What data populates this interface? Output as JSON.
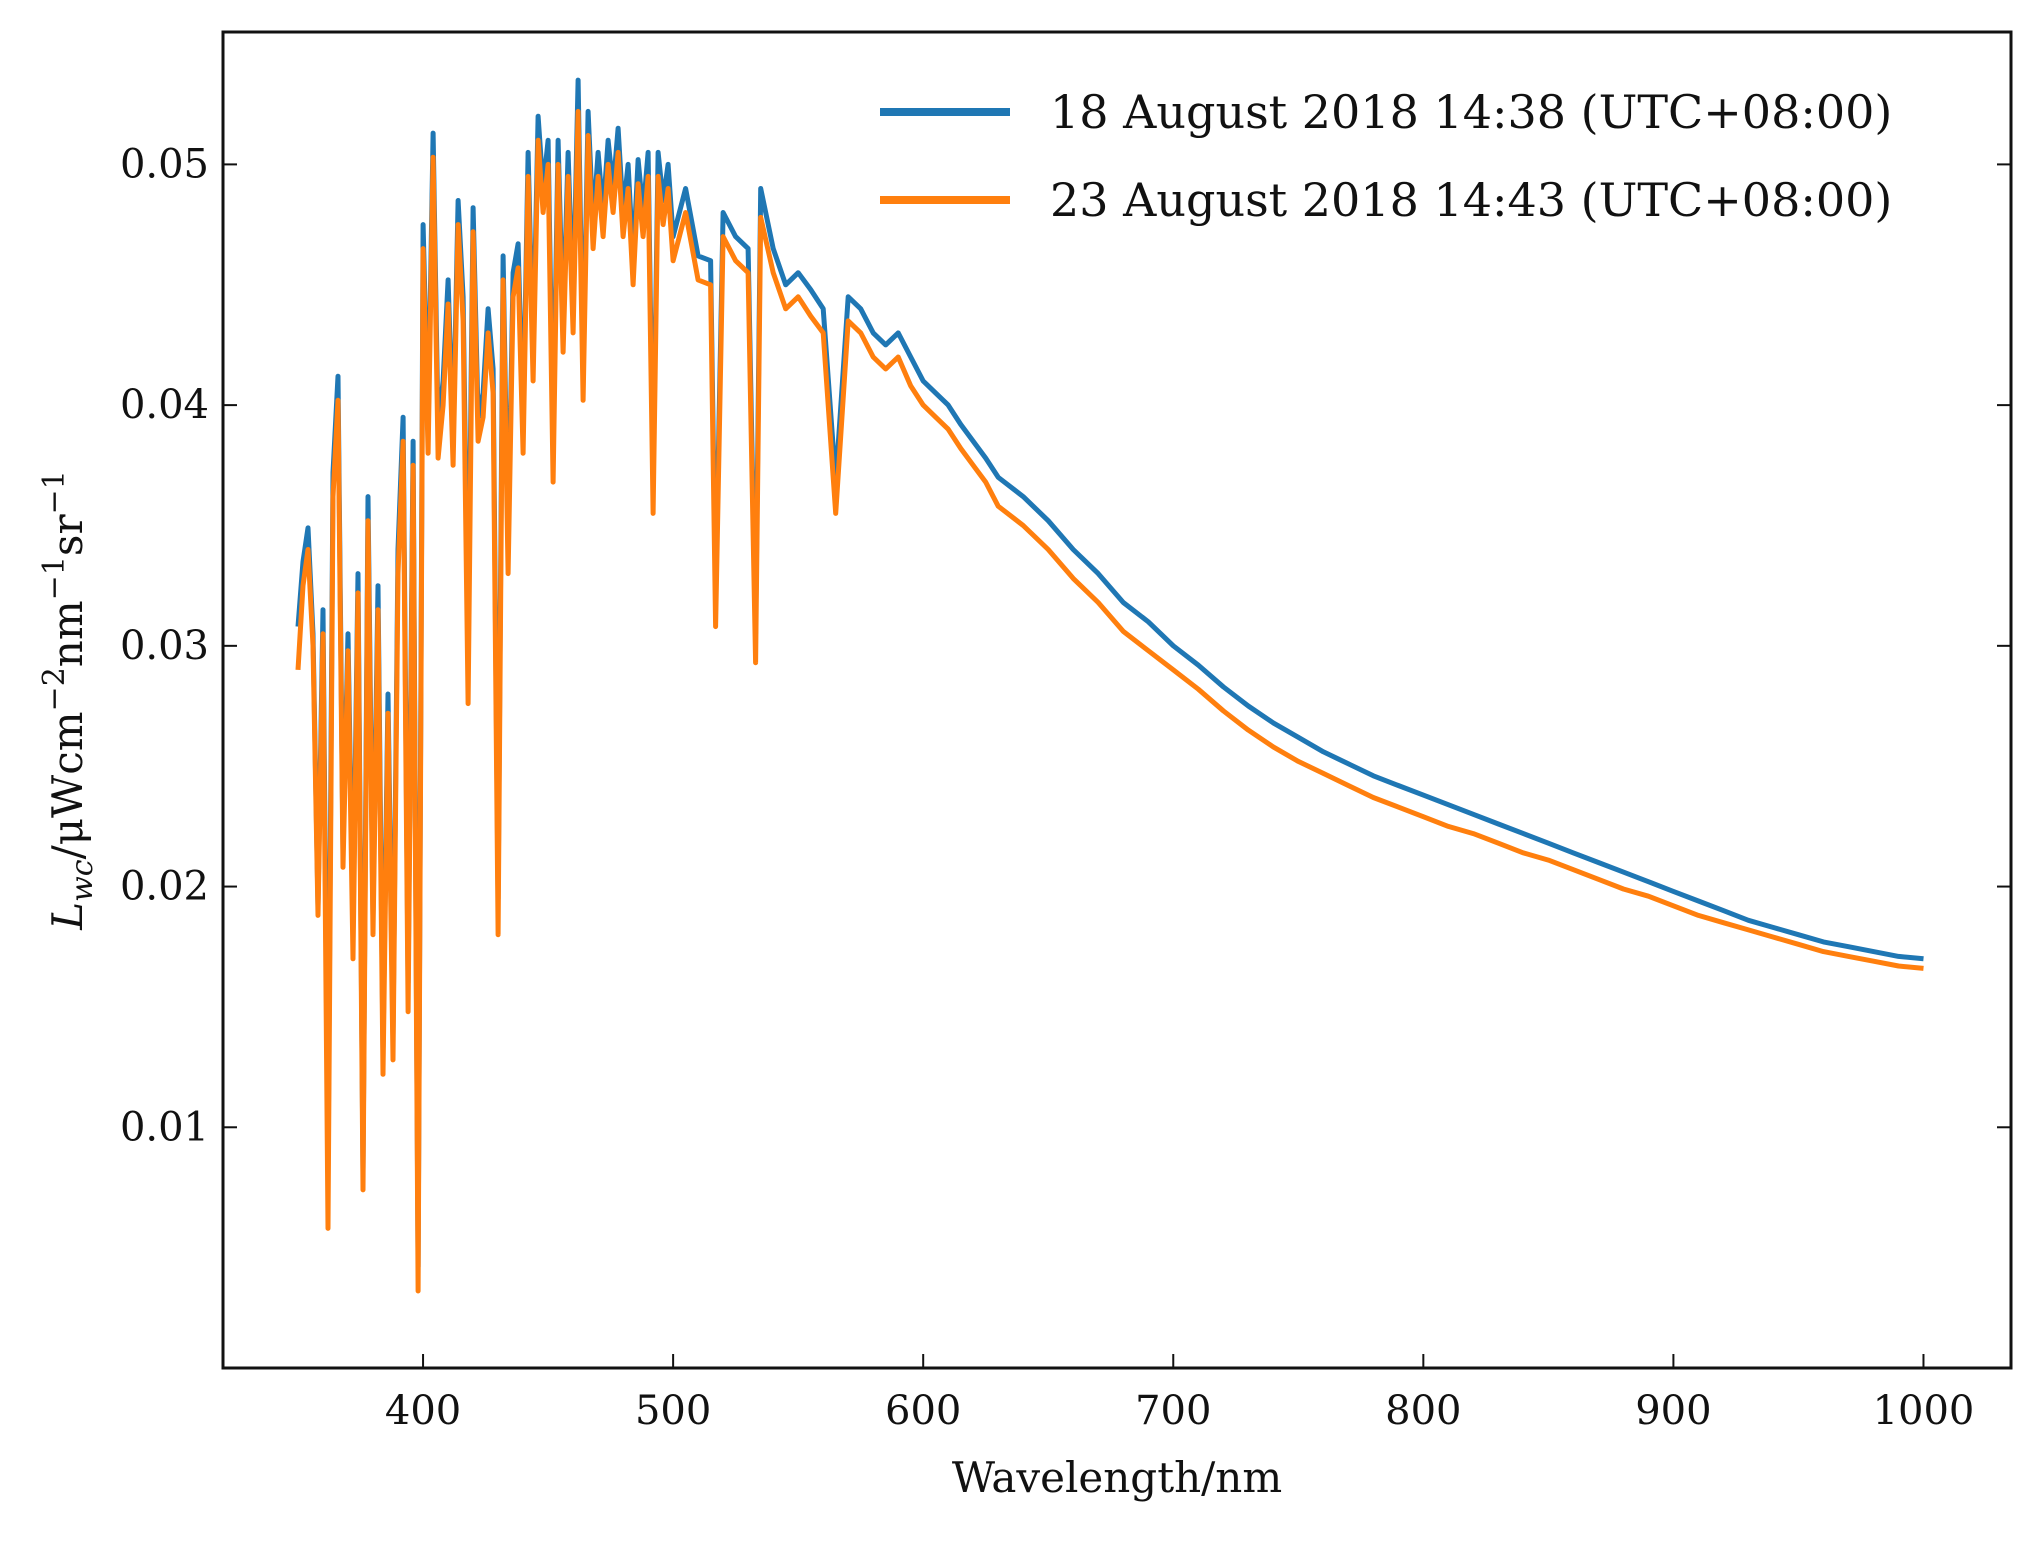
{
  "chart_data": {
    "type": "line",
    "title": "",
    "xlabel": "Wavelength/nm",
    "ylabel": {
      "prefix": "L",
      "subscript": "wc",
      "text": "/μWcm",
      "exp1": "−2",
      "mid": "nm",
      "exp2": "−1",
      "end": "sr",
      "exp3": "−1"
    },
    "xlim": [
      320,
      1035
    ],
    "ylim": [
      0,
      0.0555
    ],
    "xticks": [
      400,
      500,
      600,
      700,
      800,
      900,
      1000
    ],
    "yticks": [
      0.01,
      0.02,
      0.03,
      0.04,
      0.05
    ],
    "ytick_labels": [
      "0.01",
      "0.02",
      "0.03",
      "0.04",
      "0.05"
    ],
    "xtick_labels": [
      "400",
      "500",
      "600",
      "700",
      "800",
      "900",
      "1000"
    ],
    "legend_position": "top-right",
    "series": [
      {
        "name": "18 August 2018 14:38 (UTC+08:00)",
        "color": "#1f77b4",
        "x": [
          350,
          352,
          354,
          356,
          358,
          360,
          362,
          364,
          366,
          368,
          370,
          372,
          374,
          376,
          378,
          380,
          382,
          384,
          386,
          388,
          390,
          392,
          394,
          396,
          398,
          400,
          402,
          404,
          406,
          408,
          410,
          412,
          414,
          416,
          418,
          420,
          422,
          424,
          426,
          428,
          430,
          432,
          434,
          436,
          438,
          440,
          442,
          444,
          446,
          448,
          450,
          452,
          454,
          456,
          458,
          460,
          462,
          464,
          466,
          468,
          470,
          472,
          474,
          476,
          478,
          480,
          482,
          484,
          486,
          488,
          490,
          492,
          494,
          496,
          498,
          500,
          505,
          510,
          515,
          517,
          520,
          525,
          530,
          533,
          535,
          540,
          545,
          550,
          555,
          560,
          565,
          570,
          575,
          580,
          585,
          590,
          595,
          600,
          605,
          610,
          615,
          620,
          625,
          630,
          640,
          650,
          660,
          670,
          680,
          690,
          700,
          710,
          720,
          730,
          740,
          750,
          760,
          770,
          780,
          790,
          800,
          810,
          820,
          830,
          840,
          850,
          860,
          870,
          880,
          890,
          900,
          910,
          920,
          930,
          940,
          950,
          960,
          970,
          980,
          990,
          1000
        ],
        "y": [
          0.0308,
          0.0335,
          0.0349,
          0.0305,
          0.0192,
          0.0315,
          0.0081,
          0.0372,
          0.0412,
          0.0215,
          0.0305,
          0.0182,
          0.033,
          0.0082,
          0.0362,
          0.0188,
          0.0325,
          0.0132,
          0.028,
          0.0138,
          0.034,
          0.0395,
          0.016,
          0.0385,
          0.0042,
          0.0475,
          0.039,
          0.0513,
          0.039,
          0.041,
          0.0452,
          0.0385,
          0.0485,
          0.0445,
          0.03,
          0.0482,
          0.0395,
          0.0405,
          0.044,
          0.0415,
          0.0195,
          0.0462,
          0.034,
          0.0455,
          0.0467,
          0.039,
          0.0505,
          0.042,
          0.052,
          0.049,
          0.051,
          0.0385,
          0.051,
          0.0432,
          0.0505,
          0.044,
          0.0535,
          0.0412,
          0.0522,
          0.0475,
          0.0505,
          0.048,
          0.051,
          0.049,
          0.0515,
          0.048,
          0.05,
          0.046,
          0.0502,
          0.048,
          0.0505,
          0.0368,
          0.0505,
          0.0485,
          0.05,
          0.047,
          0.049,
          0.0462,
          0.046,
          0.032,
          0.048,
          0.047,
          0.0465,
          0.0305,
          0.049,
          0.0465,
          0.045,
          0.0455,
          0.0448,
          0.044,
          0.0368,
          0.0445,
          0.044,
          0.043,
          0.0425,
          0.043,
          0.042,
          0.041,
          0.0405,
          0.04,
          0.0392,
          0.0385,
          0.0378,
          0.037,
          0.0362,
          0.0352,
          0.034,
          0.033,
          0.0318,
          0.031,
          0.03,
          0.0292,
          0.0283,
          0.0275,
          0.0268,
          0.0262,
          0.0256,
          0.0251,
          0.0246,
          0.0242,
          0.0238,
          0.0234,
          0.023,
          0.0226,
          0.0222,
          0.0218,
          0.0214,
          0.021,
          0.0206,
          0.0202,
          0.0198,
          0.0194,
          0.019,
          0.0186,
          0.0183,
          0.018,
          0.0177,
          0.0175,
          0.0173,
          0.0171,
          0.017
        ]
      },
      {
        "name": "23 August 2018 14:43 (UTC+08:00)",
        "color": "#ff7f0e",
        "x": [
          350,
          352,
          354,
          356,
          358,
          360,
          362,
          364,
          366,
          368,
          370,
          372,
          374,
          376,
          378,
          380,
          382,
          384,
          386,
          388,
          390,
          392,
          394,
          396,
          398,
          400,
          402,
          404,
          406,
          408,
          410,
          412,
          414,
          416,
          418,
          420,
          422,
          424,
          426,
          428,
          430,
          432,
          434,
          436,
          438,
          440,
          442,
          444,
          446,
          448,
          450,
          452,
          454,
          456,
          458,
          460,
          462,
          464,
          466,
          468,
          470,
          472,
          474,
          476,
          478,
          480,
          482,
          484,
          486,
          488,
          490,
          492,
          494,
          496,
          498,
          500,
          505,
          510,
          515,
          517,
          520,
          525,
          530,
          533,
          535,
          540,
          545,
          550,
          555,
          560,
          565,
          570,
          575,
          580,
          585,
          590,
          595,
          600,
          605,
          610,
          615,
          620,
          625,
          630,
          640,
          650,
          660,
          670,
          680,
          690,
          700,
          710,
          720,
          730,
          740,
          750,
          760,
          770,
          780,
          790,
          800,
          810,
          820,
          830,
          840,
          850,
          860,
          870,
          880,
          890,
          900,
          910,
          920,
          930,
          940,
          950,
          960,
          970,
          980,
          990,
          1000
        ],
        "y": [
          0.029,
          0.0325,
          0.034,
          0.03,
          0.0188,
          0.0305,
          0.0058,
          0.0362,
          0.0402,
          0.0208,
          0.0298,
          0.017,
          0.0322,
          0.0074,
          0.0352,
          0.018,
          0.0315,
          0.0122,
          0.0272,
          0.0128,
          0.033,
          0.0385,
          0.0148,
          0.0375,
          0.0032,
          0.0465,
          0.038,
          0.0503,
          0.0378,
          0.04,
          0.0442,
          0.0375,
          0.0475,
          0.0435,
          0.0276,
          0.0472,
          0.0385,
          0.0395,
          0.043,
          0.0405,
          0.018,
          0.0452,
          0.033,
          0.0445,
          0.0457,
          0.038,
          0.0495,
          0.041,
          0.051,
          0.048,
          0.05,
          0.0368,
          0.05,
          0.0422,
          0.0495,
          0.043,
          0.0522,
          0.0402,
          0.0512,
          0.0465,
          0.0495,
          0.047,
          0.05,
          0.048,
          0.0505,
          0.047,
          0.049,
          0.045,
          0.0492,
          0.047,
          0.0495,
          0.0355,
          0.0495,
          0.0475,
          0.049,
          0.046,
          0.048,
          0.0452,
          0.045,
          0.0308,
          0.047,
          0.046,
          0.0455,
          0.0293,
          0.0478,
          0.0455,
          0.044,
          0.0445,
          0.0437,
          0.043,
          0.0355,
          0.0435,
          0.043,
          0.042,
          0.0415,
          0.042,
          0.0408,
          0.04,
          0.0395,
          0.039,
          0.0382,
          0.0375,
          0.0368,
          0.0358,
          0.035,
          0.034,
          0.0328,
          0.0318,
          0.0306,
          0.0298,
          0.029,
          0.0282,
          0.0273,
          0.0265,
          0.0258,
          0.0252,
          0.0247,
          0.0242,
          0.0237,
          0.0233,
          0.0229,
          0.0225,
          0.0222,
          0.0218,
          0.0214,
          0.0211,
          0.0207,
          0.0203,
          0.0199,
          0.0196,
          0.0192,
          0.0188,
          0.0185,
          0.0182,
          0.0179,
          0.0176,
          0.0173,
          0.0171,
          0.0169,
          0.0167,
          0.0166
        ]
      }
    ]
  }
}
